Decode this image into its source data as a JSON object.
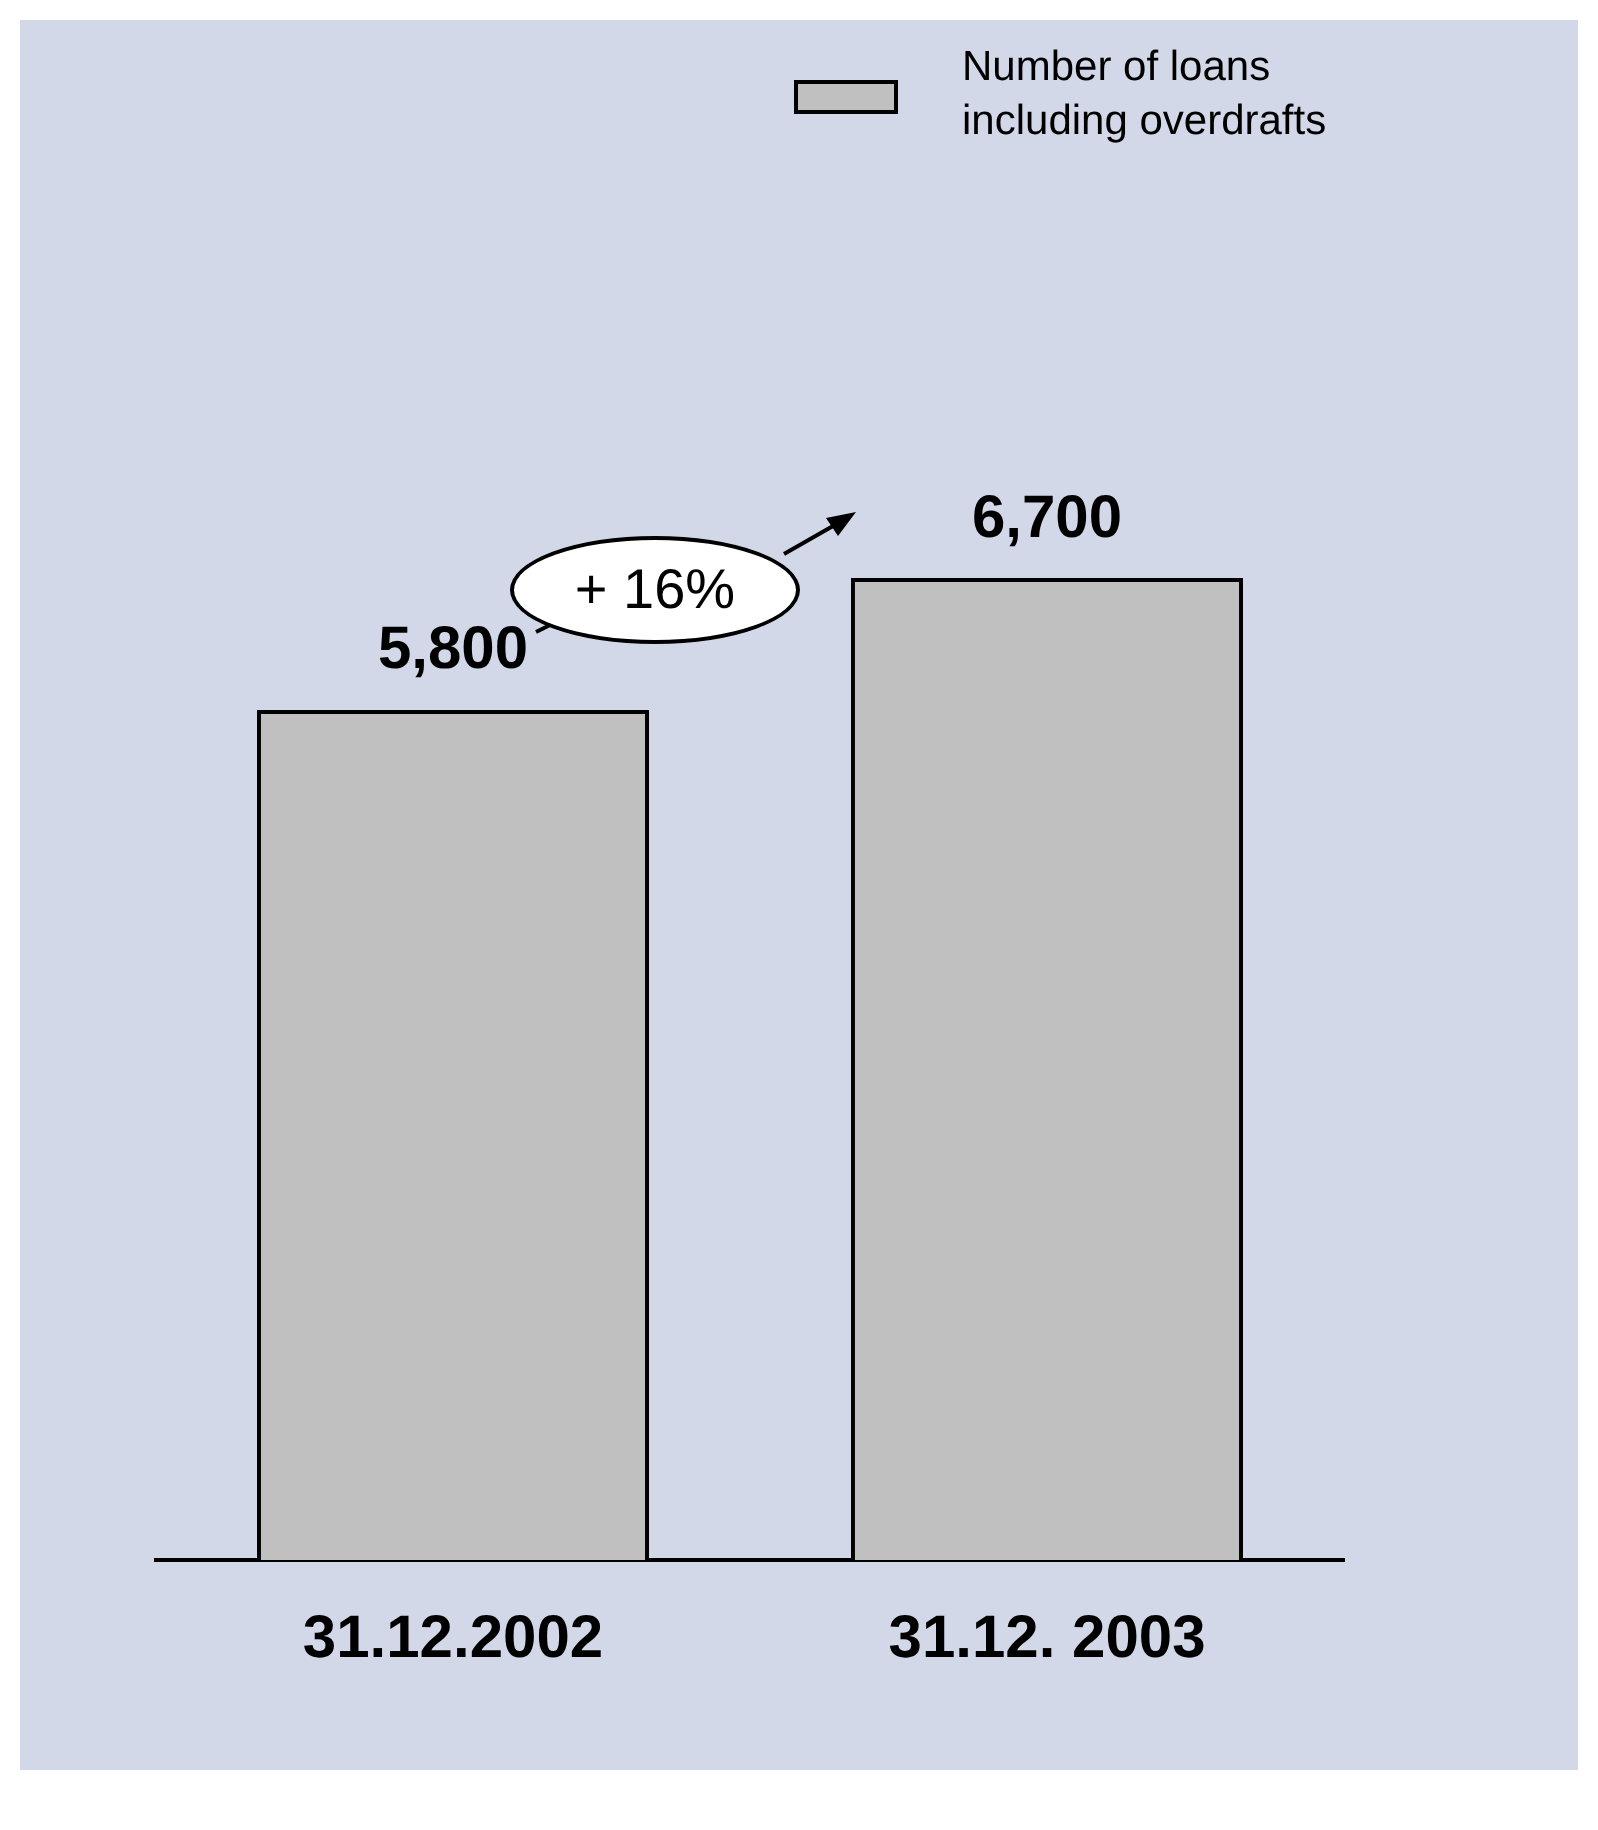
{
  "chart_data": {
    "type": "bar",
    "categories": [
      "31.12.2002",
      "31.12. 2003"
    ],
    "series": [
      {
        "name": "Number of loans including overdrafts",
        "color": "#c0c0c0",
        "values": [
          5800,
          6700
        ],
        "value_labels": [
          "5,800",
          "6,700"
        ]
      }
    ],
    "legend": "top right",
    "grid": false,
    "tick_labels": "x",
    "annotations": [
      "+ 16%"
    ]
  }
}
